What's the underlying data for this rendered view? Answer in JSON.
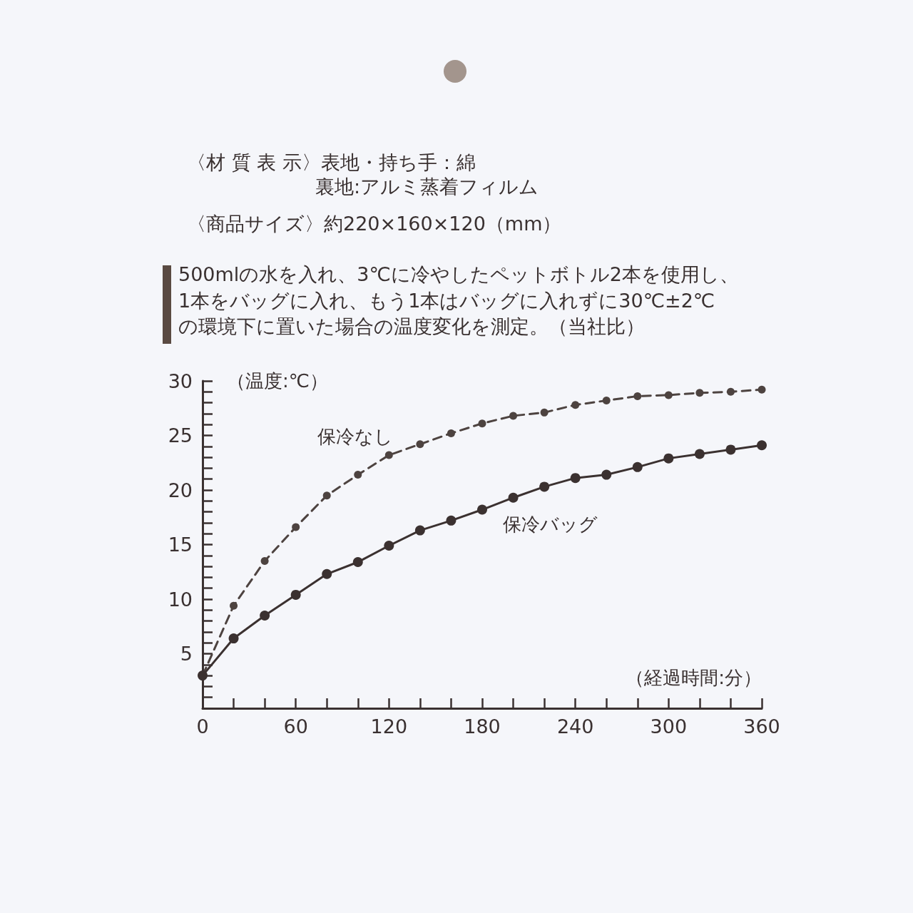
{
  "chart_data": {
    "type": "line",
    "subtitle": "500mlの水を入れ、3℃に冷やしたペットボトル2本を使用し、\n1本をバッグに入れ、もう1本はバッグに入れずに30℃±2℃\nの環境下に置いた場合の温度変化を測定。（当社比）",
    "annotations": [
      "〈材 質 表 示〉表地・持ち手：綿",
      "裏地:アルミ蒸着フィルム",
      "〈商品サイズ〉約220×160×120（mm）"
    ],
    "xlabel": "（経過時間:分）",
    "ylabel": "（温度:℃）",
    "marker": "circle",
    "x": [
      0,
      20,
      40,
      60,
      80,
      100,
      120,
      140,
      160,
      180,
      200,
      220,
      240,
      260,
      280,
      300,
      320,
      340,
      360
    ],
    "series": [
      {
        "name": "保冷なし",
        "color": "#4d4340",
        "line_style": "dashed",
        "values": [
          3,
          9.4,
          13.5,
          16.6,
          19.5,
          21.4,
          23.2,
          24.2,
          25.2,
          26.1,
          26.8,
          27.1,
          27.8,
          28.2,
          28.6,
          28.7,
          28.9,
          29.0,
          29.2
        ]
      },
      {
        "name": "保冷バッグ",
        "color": "#3b3130",
        "line_style": "solid",
        "values": [
          3,
          6.4,
          8.5,
          10.4,
          12.3,
          13.4,
          14.9,
          16.3,
          17.2,
          18.2,
          19.3,
          20.3,
          21.1,
          21.4,
          22.1,
          22.9,
          23.3,
          23.7,
          24.1
        ]
      }
    ],
    "xlim": [
      0,
      360
    ],
    "xticks": [
      0,
      {
        "value": 20,
        "label": null
      },
      {
        "value": 40,
        "label": null
      },
      60,
      {
        "value": 80,
        "label": null
      },
      {
        "value": 100,
        "label": null
      },
      120,
      {
        "value": 140,
        "label": null
      },
      {
        "value": 160,
        "label": null
      },
      180,
      {
        "value": 200,
        "label": null
      },
      {
        "value": 220,
        "label": null
      },
      240,
      {
        "value": 260,
        "label": null
      },
      {
        "value": 280,
        "label": null
      },
      300,
      {
        "value": 320,
        "label": null
      },
      {
        "value": 340,
        "label": null
      },
      360
    ],
    "ylim": [
      0,
      30
    ],
    "yticks": [
      {
        "value": 0,
        "label": null
      },
      {
        "value": 1,
        "label": null
      },
      {
        "value": 2,
        "label": null
      },
      {
        "value": 3,
        "label": null
      },
      {
        "value": 4,
        "label": null
      },
      5,
      {
        "value": 6,
        "label": null
      },
      {
        "value": 7,
        "label": null
      },
      {
        "value": 8,
        "label": null
      },
      {
        "value": 9,
        "label": null
      },
      10,
      {
        "value": 11,
        "label": null
      },
      {
        "value": 12,
        "label": null
      },
      {
        "value": 13,
        "label": null
      },
      {
        "value": 14,
        "label": null
      },
      15,
      {
        "value": 16,
        "label": null
      },
      {
        "value": 17,
        "label": null
      },
      {
        "value": 18,
        "label": null
      },
      {
        "value": 19,
        "label": null
      },
      20,
      {
        "value": 21,
        "label": null
      },
      {
        "value": 22,
        "label": null
      },
      {
        "value": 23,
        "label": null
      },
      {
        "value": 24,
        "label": null
      },
      25,
      {
        "value": 26,
        "label": null
      },
      {
        "value": 27,
        "label": null
      },
      {
        "value": 28,
        "label": null
      },
      {
        "value": 29,
        "label": null
      },
      30
    ]
  }
}
